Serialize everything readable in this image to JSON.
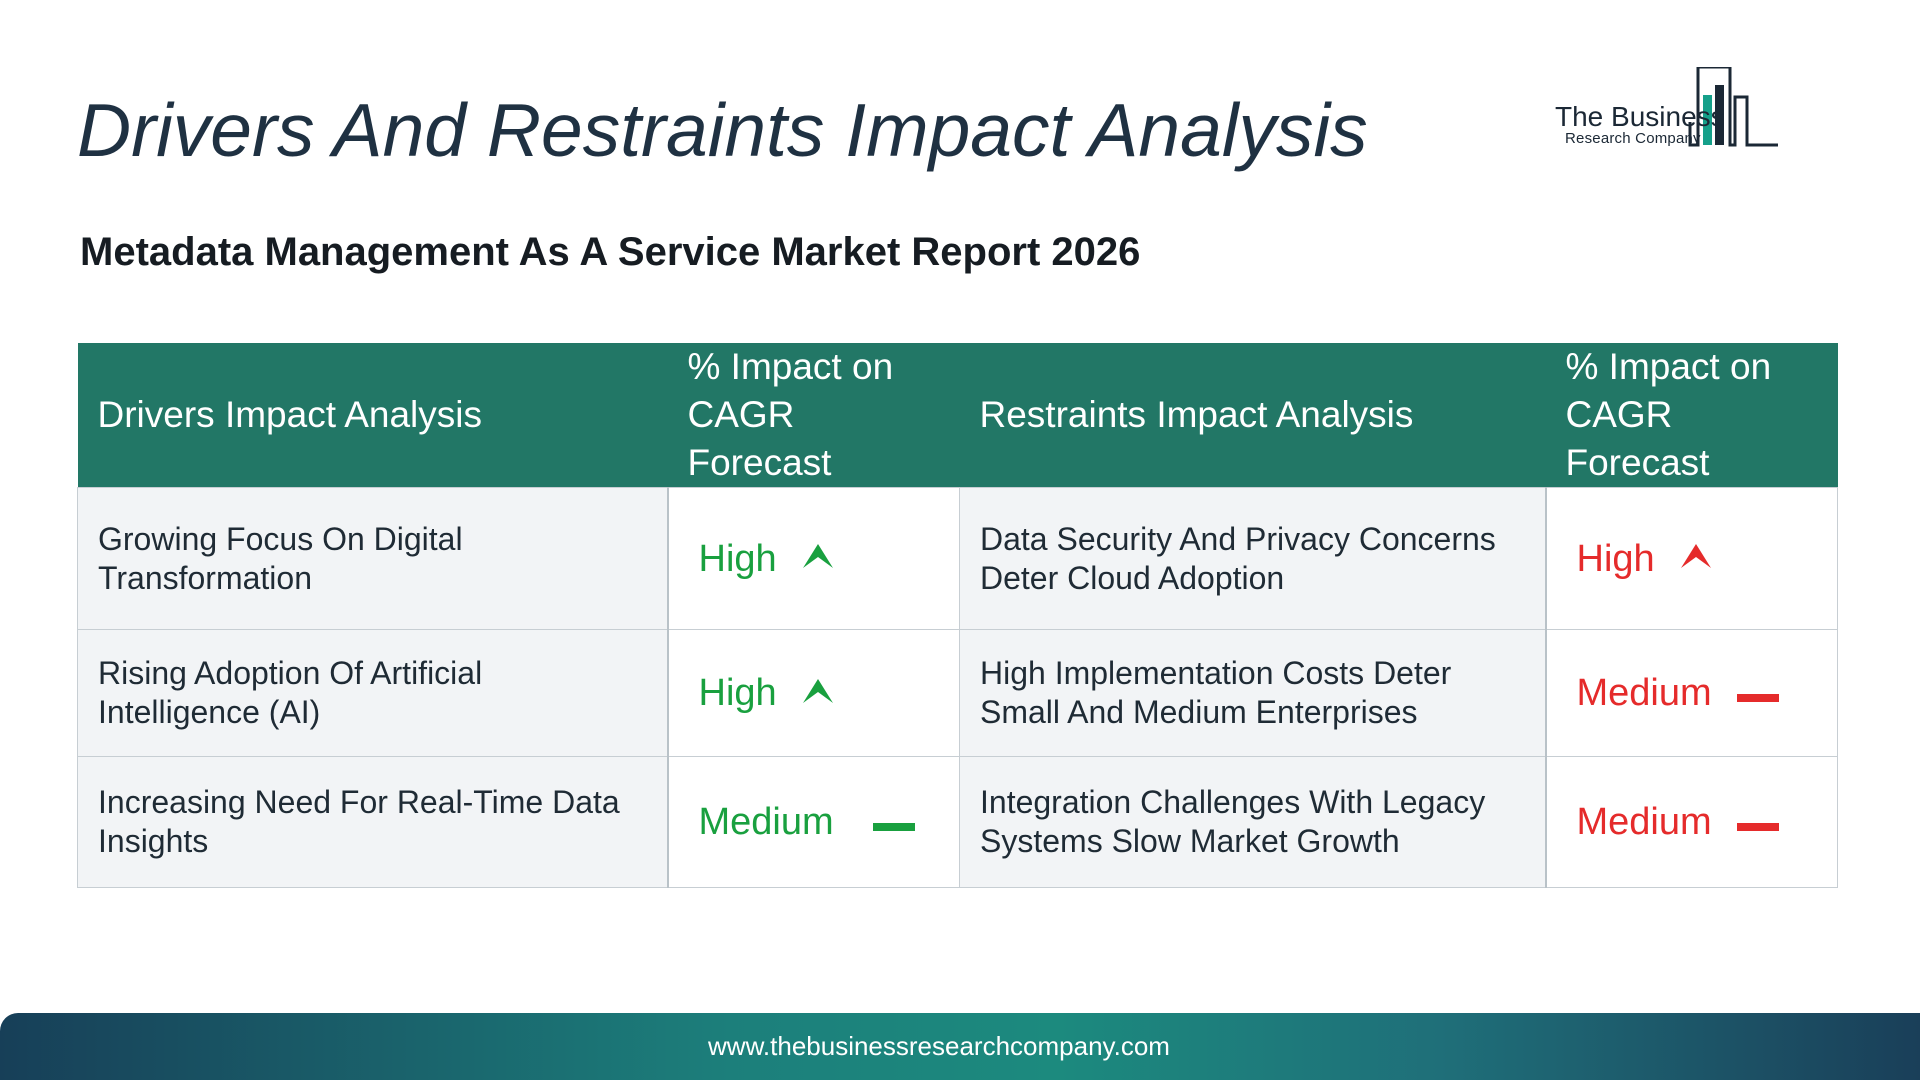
{
  "title": "Drivers And Restraints Impact Analysis",
  "subtitle": "Metadata Management As A Service Market Report 2026",
  "logo": {
    "name": "The Business",
    "tagline": "Research Company",
    "colors": {
      "dark": "#1b2835",
      "teal": "#15a08a"
    }
  },
  "table": {
    "headers": {
      "drivers": "Drivers Impact Analysis",
      "drivers_impact": "% Impact on CAGR Forecast",
      "restraints": "Restraints Impact Analysis",
      "restraints_impact": "% Impact on CAGR Forecast"
    },
    "rows": [
      {
        "driver": "Growing Focus On Digital Transformation",
        "driver_impact": "High",
        "driver_icon": "arrow-up-icon",
        "restraint": "Data Security And Privacy Concerns Deter Cloud Adoption",
        "restraint_impact": "High",
        "restraint_icon": "arrow-up-icon"
      },
      {
        "driver": "Rising Adoption Of Artificial Intelligence (AI)",
        "driver_impact": "High",
        "driver_icon": "arrow-up-icon",
        "restraint": "High Implementation Costs Deter Small And Medium Enterprises",
        "restraint_impact": "Medium",
        "restraint_icon": "dash-icon"
      },
      {
        "driver": "Increasing Need For Real-Time Data Insights",
        "driver_impact": "Medium",
        "driver_icon": "dash-icon",
        "restraint": "Integration Challenges With Legacy Systems Slow Market Growth",
        "restraint_impact": "Medium",
        "restraint_icon": "dash-icon"
      }
    ]
  },
  "colors": {
    "header_bg": "#227766",
    "driver_impact": "#19a03f",
    "restraint_impact": "#e52b2b"
  },
  "footer": {
    "url": "www.thebusinessresearchcompany.com"
  }
}
